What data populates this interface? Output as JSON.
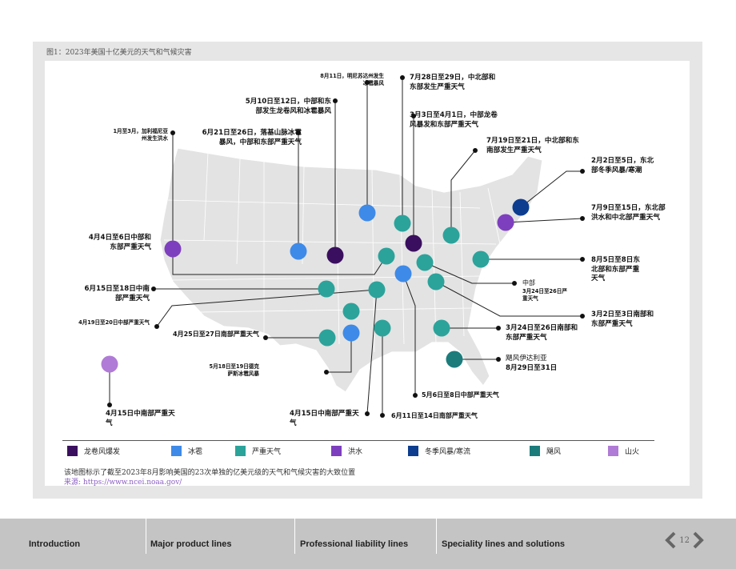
{
  "figure": {
    "title": "图1：2023年美国十亿美元的天气和气候灾害",
    "note": "该地图标示了截至2023年8月影响美国的23次单独的亿美元级的天气和气候灾害的大致位置",
    "source": "来源: https://www.ncei.noaa.gov/"
  },
  "colors": {
    "tornado": "#3b0f5f",
    "hail": "#3e8ae8",
    "severe": "#2ba39b",
    "flood": "#7e3fbf",
    "winter": "#0d3d8f",
    "hurricane": "#1c7c7c",
    "wildfire": "#b07bd6"
  },
  "legend": [
    {
      "key": "tornado",
      "label": "龙卷风爆发"
    },
    {
      "key": "hail",
      "label": "冰雹"
    },
    {
      "key": "severe",
      "label": "严重天气"
    },
    {
      "key": "flood",
      "label": "洪水"
    },
    {
      "key": "winter",
      "label": "冬季风暴/寒流"
    },
    {
      "key": "hurricane",
      "label": "飓风"
    },
    {
      "key": "wildfire",
      "label": "山火"
    }
  ],
  "labels": {
    "l1": "8月11日，明尼苏达州发生\n冰雹暴风",
    "l2": "7月28日至29日，中北部和\n东部发生严重天气",
    "l3": "5月10日至12日，中部和东\n部发生龙卷风和冰雹暴风",
    "l4": "3月3日至4月1日，中部龙卷\n风暴发和东部严重天气",
    "l5": "1月至3月，加利福尼亚\n州发生洪水",
    "l6": "6月21日至26日，落基山脉冰雹\n暴风，中部和东部严重天气",
    "l7": "7月19日至21日，中北部和东\n南部发生严重天气",
    "l8": "2月2日至5日，东北\n部冬季风暴/寒潮",
    "l9": "7月9日至15日，东北部\n洪水和中北部严重天气",
    "l10": "4月4日至6日中部和\n东部严重天气",
    "l11": "8月5日至8日东\n北部和东部严重\n天气",
    "l12": "6月15日至18日中南\n部严重天气",
    "l13": "中部",
    "l14": "3月24日至26日严\n重天气",
    "l15": "3月2日至3日南部和\n东部严重天气",
    "l16": "4月19日至20日中部严重天气",
    "l17": "4月25日至27日南部严重天气",
    "l18": "3月24日至26日南部和\n东部严重天气",
    "l19": "飓风伊达利亚",
    "l20": "8月29日至31日",
    "l21": "5月18日至19日德克\n萨斯冰雹风暴",
    "l22": "5月6日至8日中部严重天气",
    "l23": "4月15日中南部严重天\n气",
    "l24": "4月15日中南部严重天\n气",
    "l25": "6月11日至14日南部严重天气"
  },
  "footer": {
    "tabs": [
      "Introduction",
      "Major product lines",
      "Professional liability lines",
      "Speciality lines and solutions"
    ],
    "page": "12"
  }
}
